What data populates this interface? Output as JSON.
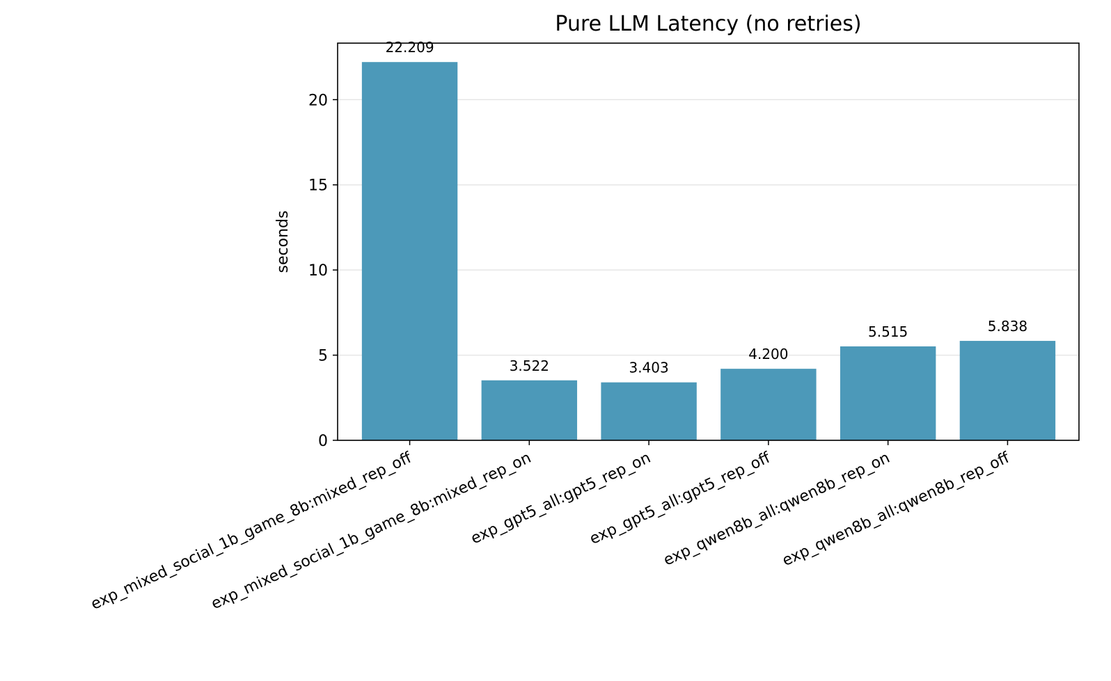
{
  "chart_data": {
    "type": "bar",
    "title": "Pure LLM Latency (no retries)",
    "xlabel": "",
    "ylabel": "seconds",
    "ylim": [
      0,
      23.32
    ],
    "yticks": [
      0,
      5,
      10,
      15,
      20
    ],
    "grid": "horizontal",
    "bar_color": "#4c99b9",
    "categories": [
      "exp_mixed_social_1b_game_8b:mixed_rep_off",
      "exp_mixed_social_1b_game_8b:mixed_rep_on",
      "exp_gpt5_all:gpt5_rep_on",
      "exp_gpt5_all:gpt5_rep_off",
      "exp_qwen8b_all:qwen8b_rep_on",
      "exp_qwen8b_all:qwen8b_rep_off"
    ],
    "values": [
      22.209,
      3.522,
      3.403,
      4.2,
      5.515,
      5.838
    ],
    "value_labels": [
      "22.209",
      "3.522",
      "3.403",
      "4.200",
      "5.515",
      "5.838"
    ]
  }
}
